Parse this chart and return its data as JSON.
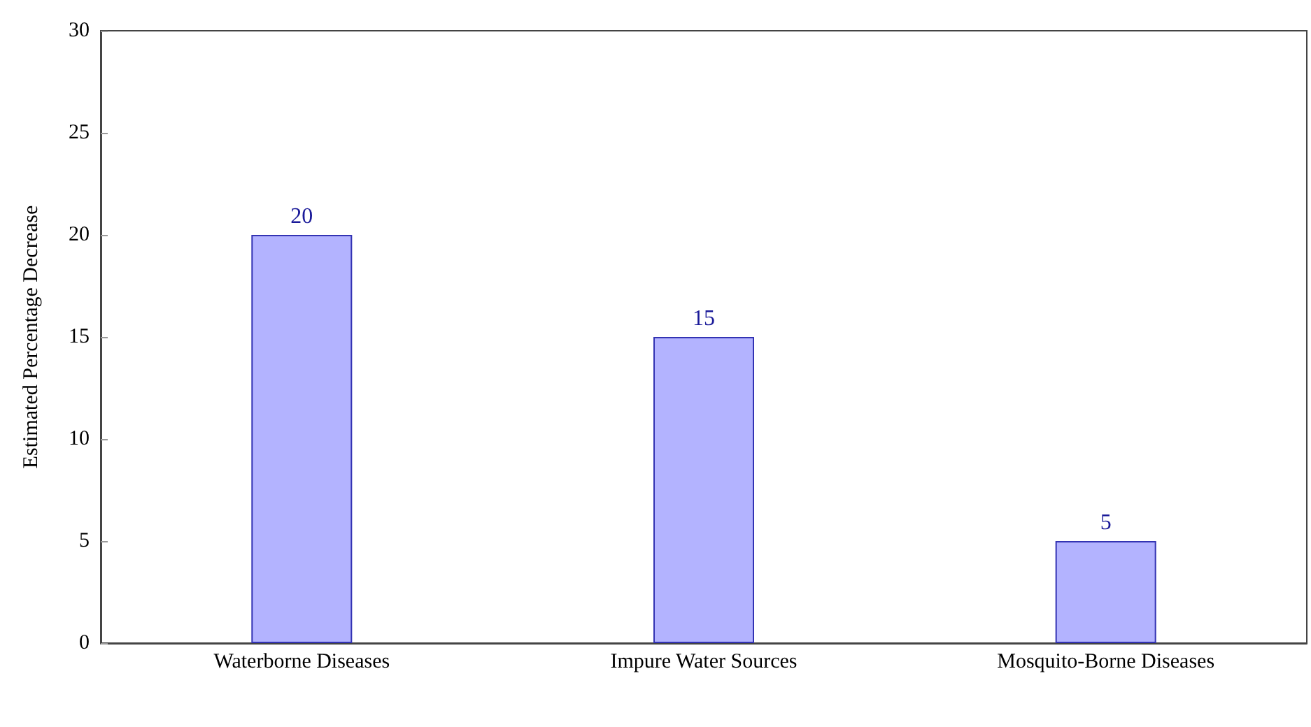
{
  "chart_data": {
    "type": "bar",
    "ylabel": "Estimated Percentage Decrease",
    "categories": [
      "Waterborne Diseases",
      "Impure Water Sources",
      "Mosquito-Borne Diseases"
    ],
    "values": [
      20,
      15,
      5
    ],
    "color": "#b3b3ff",
    "ylim": [
      0,
      30
    ],
    "yticks": [
      0,
      5,
      10,
      15,
      20,
      25,
      30
    ],
    "data_labels": true,
    "grid": false
  }
}
